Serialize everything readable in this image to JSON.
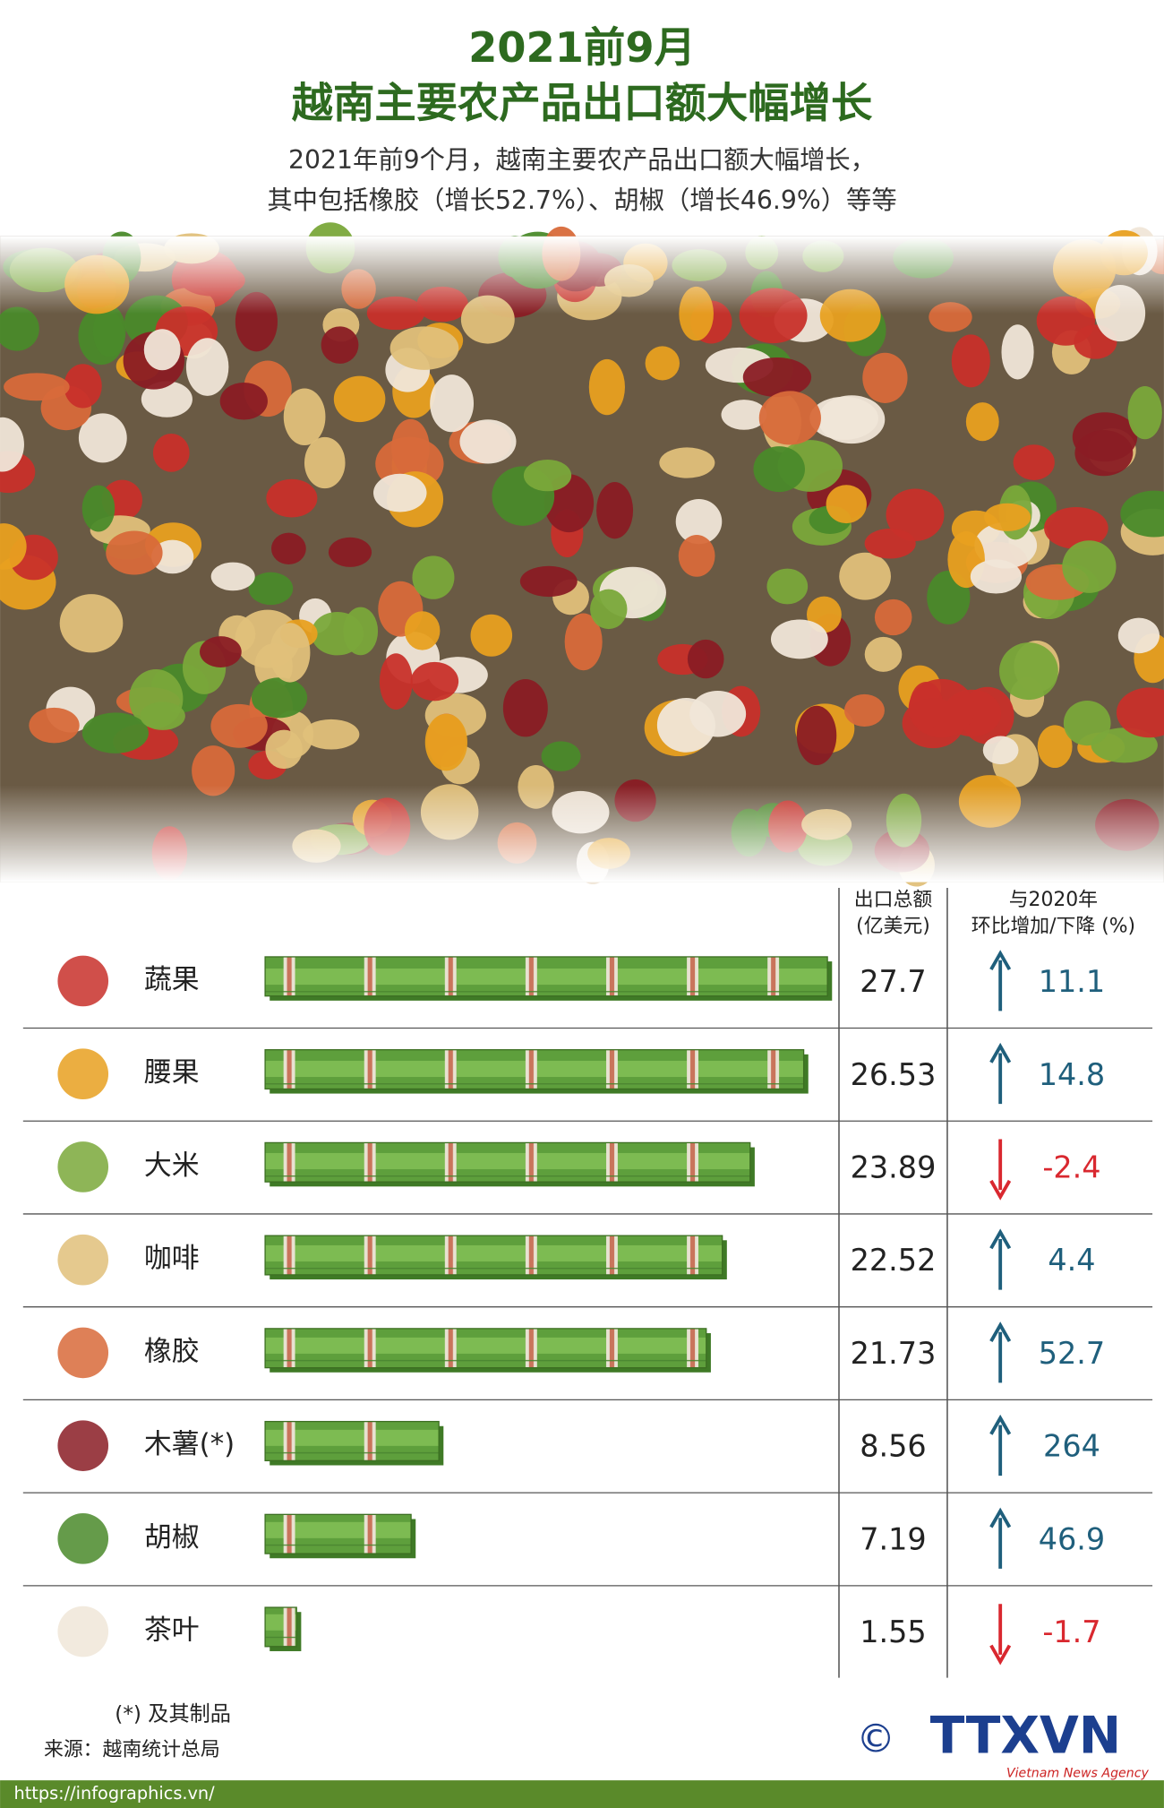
{
  "chart_data": {
    "type": "bar",
    "title": [
      "2021前9月",
      "越南主要农产品出口额大幅增长"
    ],
    "subtitle": [
      "2021年前9个月，越南主要农产品出口额大幅增长，",
      "其中包括橡胶（增长52.7%）、胡椒（增长46.9%）等等"
    ],
    "categories": [
      "蔬果",
      "腰果",
      "大米",
      "咖啡",
      "橡胶",
      "木薯(*)",
      "胡椒",
      "茶叶"
    ],
    "series": [
      {
        "name": [
          "出口总额",
          "(亿美元)"
        ],
        "color": "#5a9e3a",
        "values": [
          27.7,
          26.53,
          23.89,
          22.52,
          21.73,
          8.56,
          7.19,
          1.55
        ]
      },
      {
        "name": [
          "与2020年",
          "环比增加/下降 (%)"
        ],
        "values": [
          11.1,
          14.8,
          -2.4,
          4.4,
          52.7,
          264,
          46.9,
          -1.7
        ]
      }
    ],
    "colors": {
      "up": "#1f5f7c",
      "down": "#d9282f"
    },
    "footnote": "(*) 及其制品",
    "source": "来源：越南统计总局",
    "url": "https://infographics.vn/",
    "logo": {
      "symbol": "©",
      "name": "TTXVN",
      "tagline": "Vietnam News Agency"
    }
  }
}
